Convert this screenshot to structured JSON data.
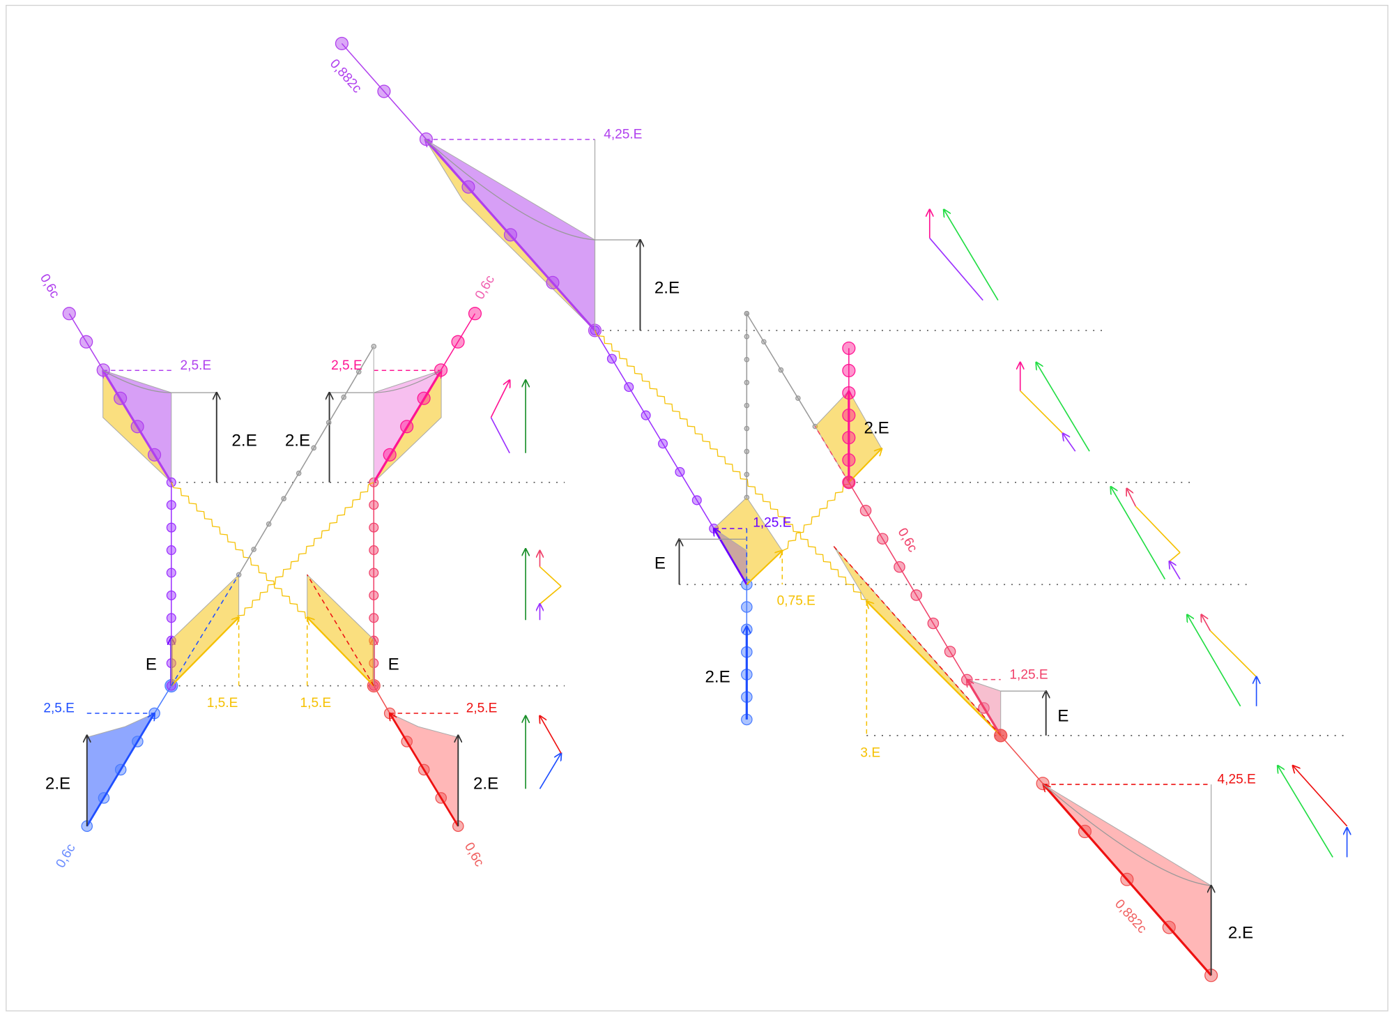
{
  "colors": {
    "blue": "#1f4fff",
    "purple": "#9b30ff",
    "violet": "#b040ee",
    "magenta": "#ff1493",
    "pink": "#f0406a",
    "red": "#ee1111",
    "yellow": "#f5c000",
    "green_dark": "#1a8f2a",
    "green_light": "#22dd44",
    "gray": "#999999"
  },
  "labels": {
    "left_blue_energy": "2,5.E",
    "left_blue_delta": "2.E",
    "left_blue_speed": "0,6c",
    "left_purple_energy": "2,5.E",
    "left_purple_delta": "2.E",
    "left_purple_speed": "0,6c",
    "left_rest_energy": "E",
    "right_red_energy": "2,5.E",
    "right_red_delta": "2.E",
    "right_red_speed": "0,6c",
    "right_pink_energy": "2,5.E",
    "right_pink_delta": "2.E",
    "right_pink_speed": "0,6c",
    "right_rest_energy": "E",
    "photon_left": "1,5.E",
    "photon_right": "1,5.E",
    "top_energy": "4,25.E",
    "top_delta": "2.E",
    "top_speed": "0,882c",
    "mid_blue_delta": "2.E",
    "mid_purple_energy": "1,25.E",
    "mid_rest_energy": "E",
    "mid_photon": "0,75.E",
    "mid_pink_delta": "2.E",
    "mid_pink_speed": "0,6c",
    "low_pink_energy": "1,25.E",
    "low_rest_energy": "E",
    "low_photon": "3.E",
    "bottom_energy": "4,25.E",
    "bottom_delta": "2.E",
    "bottom_speed": "0,882c"
  }
}
